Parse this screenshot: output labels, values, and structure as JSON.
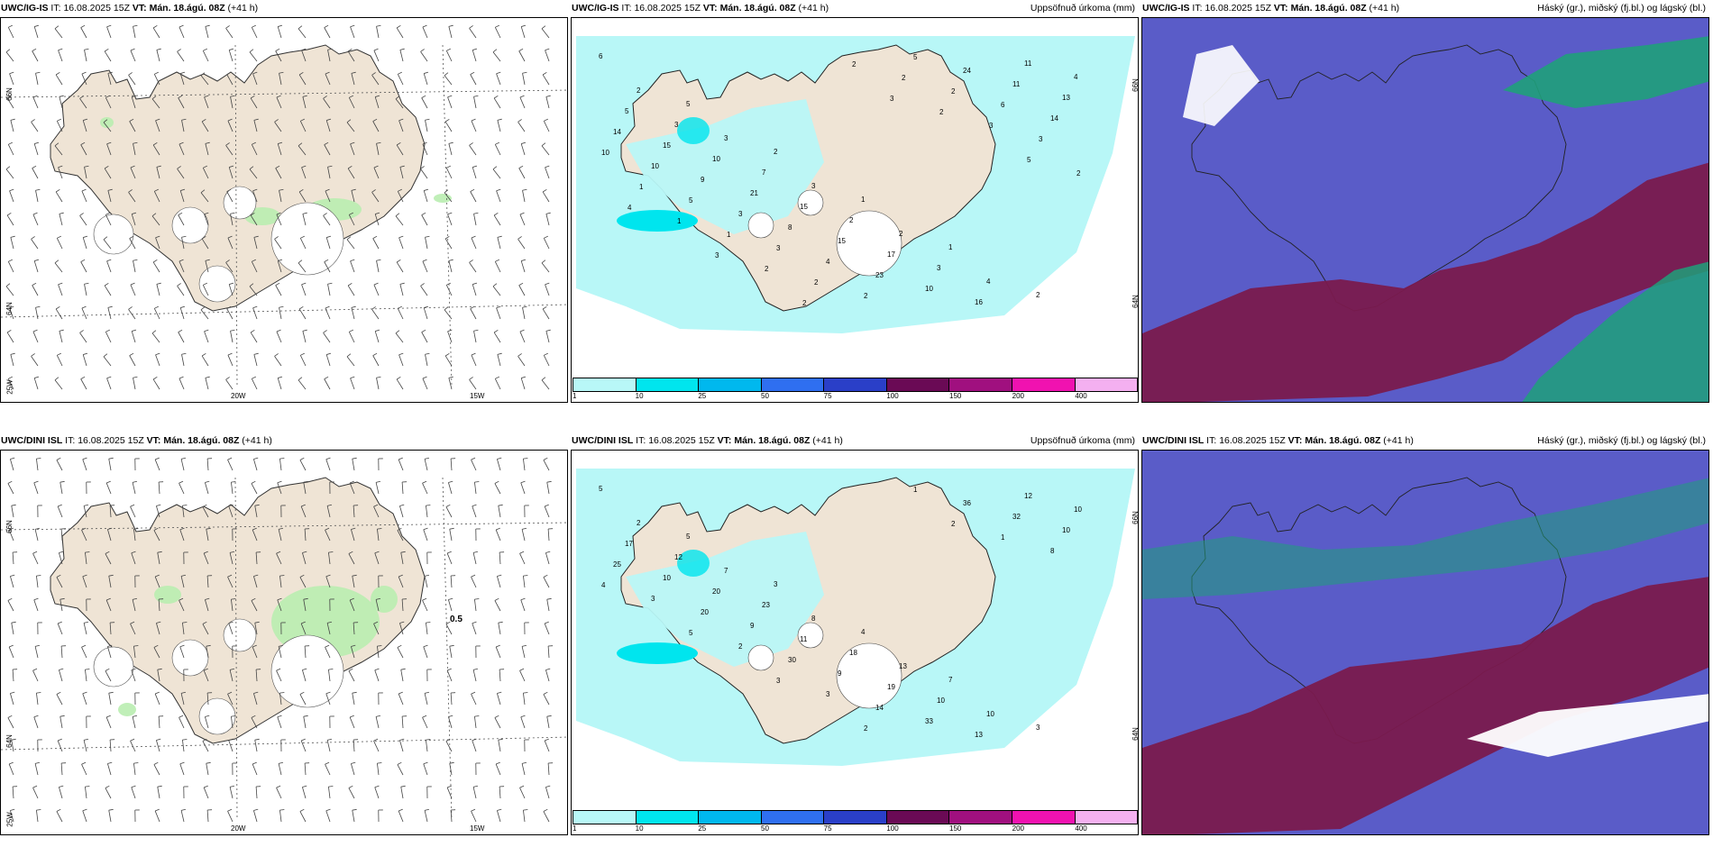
{
  "panels": [
    {
      "id": "r1c1",
      "model": "UWC/IG-IS",
      "it_label": "IT:",
      "it_value": "16.08.2025 15Z",
      "vt_label": "VT:",
      "vt_value": "Mán. 18.ágú. 08Z",
      "lead": "(+41 h)",
      "title_right": "",
      "kind": "wind",
      "lon_labels": [
        "20W",
        "15W"
      ],
      "lat_labels": [
        "66N",
        "64N",
        "25W"
      ]
    },
    {
      "id": "r1c2",
      "model": "UWC/IG-IS",
      "it_label": "IT:",
      "it_value": "16.08.2025 15Z",
      "vt_label": "VT:",
      "vt_value": "Mán. 18.ágú. 08Z",
      "lead": "(+41 h)",
      "title_right": "Uppsöfnuð úrkoma (mm)",
      "kind": "precip",
      "lat_labels": [
        "66N",
        "64N"
      ]
    },
    {
      "id": "r1c3",
      "model": "UWC/IG-IS",
      "it_label": "IT:",
      "it_value": "16.08.2025 15Z",
      "vt_label": "VT:",
      "vt_value": "Mán. 18.ágú. 08Z",
      "lead": "(+41 h)",
      "title_right": "Háský (gr.), miðský (fj.bl.) og lágský (bl.)",
      "kind": "cloud"
    },
    {
      "id": "r2c1",
      "model": "UWC/DINI ISL",
      "it_label": "IT:",
      "it_value": "16.08.2025 15Z",
      "vt_label": "VT:",
      "vt_value": "Mán. 18.ágú. 08Z",
      "lead": "(+41 h)",
      "title_right": "",
      "kind": "wind",
      "lon_labels": [
        "20W",
        "15W"
      ],
      "lat_labels": [
        "66N",
        "64N",
        "25W"
      ],
      "annotation": "0.5"
    },
    {
      "id": "r2c2",
      "model": "UWC/DINI ISL",
      "it_label": "IT:",
      "it_value": "16.08.2025 15Z",
      "vt_label": "VT:",
      "vt_value": "Mán. 18.ágú. 08Z",
      "lead": "(+41 h)",
      "title_right": "Uppsöfnuð úrkoma (mm)",
      "kind": "precip",
      "lat_labels": [
        "66N",
        "64N"
      ]
    },
    {
      "id": "r2c3",
      "model": "UWC/DINI ISL",
      "it_label": "IT:",
      "it_value": "16.08.2025 15Z",
      "vt_label": "VT:",
      "vt_value": "Mán. 18.ágú. 08Z",
      "lead": "(+41 h)",
      "title_right": "Háský (gr.), miðský (fj.bl.) og lágský (bl.)",
      "kind": "cloud"
    }
  ],
  "colorbar": {
    "ticks": [
      "1",
      "10",
      "25",
      "50",
      "75",
      "100",
      "150",
      "200",
      "400"
    ],
    "colors": [
      "#b8f7f7",
      "#00e5ee",
      "#00b8ee",
      "#2f6ff0",
      "#2a3fc8",
      "#6a0a55",
      "#a0107f",
      "#f012b0",
      "#f4b0f0"
    ]
  },
  "precip_values_top": [
    "6",
    "5",
    "2",
    "1",
    "1",
    "2",
    "2",
    "3",
    "3",
    "2",
    "4",
    "4",
    "3",
    "7",
    "2",
    "3",
    "11",
    "5",
    "10",
    "15",
    "17",
    "16",
    "13",
    "15",
    "21",
    "15",
    "10",
    "11",
    "14",
    "9",
    "8",
    "23",
    "24",
    "14",
    "10",
    "3",
    "4",
    "5",
    "6",
    "10",
    "5",
    "3",
    "2",
    "2",
    "3",
    "1",
    "1",
    "2",
    "2",
    "3",
    "2",
    "1",
    "2",
    "2",
    "2",
    "5",
    "4",
    "3",
    "2",
    "3"
  ],
  "precip_values_bottom": [
    "5",
    "5",
    "3",
    "4",
    "7",
    "3",
    "2",
    "7",
    "8",
    "13",
    "10",
    "10",
    "12",
    "23",
    "18",
    "10",
    "12",
    "17",
    "20",
    "11",
    "19",
    "13",
    "10",
    "10",
    "9",
    "9",
    "33",
    "32",
    "25",
    "20",
    "30",
    "14",
    "36",
    "8",
    "3",
    "2",
    "3",
    "1",
    "1",
    "4",
    "5",
    "3",
    "2",
    "2"
  ],
  "colors": {
    "land": "#efe4d5",
    "sea_wind": "#ffffff",
    "precip_light": "#b8f7f7",
    "cloud_low": "#5a5cc8",
    "cloud_mid": "#7a1a4e",
    "cloud_high": "#1fa07a",
    "wind_green": "#b9edb0"
  }
}
